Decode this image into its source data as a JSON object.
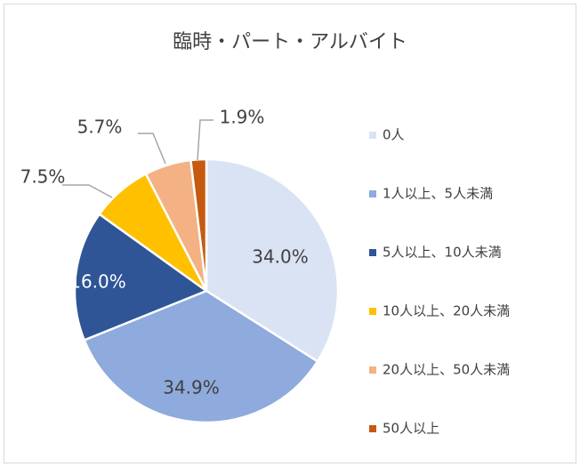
{
  "chart_data": {
    "type": "pie",
    "title": "臨時・パート・アルバイト",
    "categories": [
      "0人",
      "1人以上、5人未満",
      "5人以上、10人未満",
      "10人以上、20人未満",
      "20人以上、50人未満",
      "50人以上"
    ],
    "values": [
      34.0,
      34.9,
      16.0,
      7.5,
      5.7,
      1.9
    ],
    "value_labels": [
      "34.0%",
      "34.9%",
      "16.0%",
      "7.5%",
      "5.7%",
      "1.9%"
    ],
    "colors": [
      "#dae3f3",
      "#8faadc",
      "#2f5597",
      "#ffc000",
      "#f4b183",
      "#c55a11"
    ],
    "legend": "right"
  }
}
